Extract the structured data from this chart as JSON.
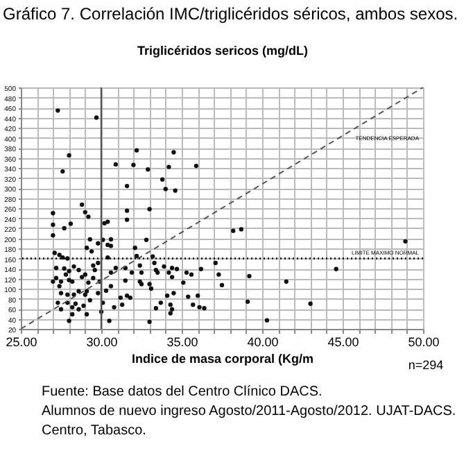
{
  "chart_data": {
    "type": "scatter",
    "title": "Gráfico 7. Correlación IMC/triglicéridos séricos, ambos sexos.",
    "ylabel": "Triglicéridos sericos (mg/dL)",
    "xlabel": "Indice de masa corporal (Kg/m",
    "marker": "circle",
    "grid": true,
    "series": [
      {
        "color": "#111111",
        "x": [
          27.3,
          29.7,
          28.0,
          27.6,
          32.2,
          30.9,
          32.0,
          32.9,
          34.5,
          34.2,
          35.9,
          33.8,
          34.0,
          34.6,
          31.6,
          28.8,
          29.0,
          29.2,
          27.0,
          31.6,
          33.0,
          31.6,
          27.0,
          27.7,
          28.1,
          30.2,
          30.4,
          27.0,
          30.1,
          29.3,
          30.6,
          32.8,
          29.8,
          30.4,
          30.6,
          29.1,
          32.1,
          27.1,
          27.4,
          27.6,
          27.9,
          30.4,
          29.4,
          32.2,
          33.2,
          38.2,
          38.7,
          48.9,
          39.2,
          44.6,
          41.5,
          39.1,
          43.0,
          40.3,
          27.2,
          27.7,
          28.0,
          28.3,
          28.6,
          29.0,
          27.2,
          27.0,
          27.4,
          28.0,
          27.5,
          27.9,
          28.3,
          28.6,
          27.3,
          27.5,
          27.9,
          28.2,
          28.4,
          28.2,
          28.0,
          28.6,
          28.9,
          29.3,
          29.1,
          29.0,
          29.2,
          29.5,
          29.6,
          29.8,
          29.5,
          29.9,
          29.8,
          30.1,
          30.0,
          30.5,
          30.3,
          30.6,
          30.6,
          30.9,
          30.8,
          31.2,
          31.3,
          31.6,
          31.8,
          31.5,
          31.5,
          31.9,
          32.4,
          32.5,
          32.4,
          32.5,
          33.0,
          33.1,
          33.0,
          33.3,
          33.4,
          33.5,
          33.4,
          33.7,
          33.9,
          34.1,
          34.2,
          34.4,
          34.4,
          34.7,
          34.3,
          34.3,
          34.5,
          34.4,
          35.1,
          35.3,
          35.6,
          35.4,
          35.7,
          36.0,
          36.1,
          36.4,
          36.2,
          37.1,
          37.3,
          37.5,
          27.5,
          27.8,
          28.2,
          28.8,
          29.1
        ],
        "values": [
          454,
          440,
          365,
          333,
          375,
          347,
          346,
          337,
          371,
          342,
          344,
          317,
          298,
          295,
          304,
          267,
          252,
          243,
          250,
          255,
          258,
          237,
          227,
          220,
          229,
          230,
          233,
          206,
          197,
          198,
          198,
          197,
          190,
          187,
          185,
          181,
          181,
          171,
          167,
          162,
          160,
          162,
          174,
          165,
          164,
          215,
          218,
          194,
          125,
          139,
          114,
          74,
          70,
          37,
          141,
          140,
          135,
          144,
          137,
          128,
          121,
          114,
          105,
          117,
          91,
          88,
          88,
          95,
          72,
          59,
          72,
          63,
          70,
          49,
          36,
          59,
          66,
          77,
          49,
          88,
          112,
          121,
          137,
          151,
          146,
          114,
          91,
          72,
          54,
          36,
          96,
          105,
          132,
          141,
          63,
          82,
          68,
          86,
          82,
          141,
          116,
          132,
          146,
          132,
          114,
          109,
          109,
          100,
          34,
          151,
          137,
          132,
          61,
          72,
          144,
          86,
          132,
          123,
          141,
          139,
          68,
          51,
          91,
          59,
          112,
          132,
          128,
          84,
          68,
          86,
          63,
          61,
          139,
          151,
          128,
          107,
          114,
          128,
          114,
          123,
          95
        ]
      },
      {
        "color": "#555555",
        "type": "line",
        "marker": "none",
        "line_style": "dashed",
        "x": [
          25,
          50
        ],
        "values": [
          20,
          500
        ]
      }
    ],
    "xlim": [
      25,
      50
    ],
    "xticks": [
      {
        "value": 25,
        "label": "25.00"
      },
      {
        "value": 26,
        "label": null
      },
      {
        "value": 27,
        "label": null
      },
      {
        "value": 28,
        "label": null
      },
      {
        "value": 29,
        "label": null
      },
      {
        "value": 30,
        "label": "30.00"
      },
      {
        "value": 31,
        "label": null
      },
      {
        "value": 32,
        "label": null
      },
      {
        "value": 33,
        "label": null
      },
      {
        "value": 34,
        "label": null
      },
      {
        "value": 35,
        "label": "35.00"
      },
      {
        "value": 36,
        "label": null
      },
      {
        "value": 37,
        "label": null
      },
      {
        "value": 38,
        "label": null
      },
      {
        "value": 39,
        "label": null
      },
      {
        "value": 40,
        "label": "40.00"
      },
      {
        "value": 41,
        "label": null
      },
      {
        "value": 42,
        "label": null
      },
      {
        "value": 43,
        "label": null
      },
      {
        "value": 44,
        "label": null
      },
      {
        "value": 45,
        "label": "45.00"
      },
      {
        "value": 46,
        "label": null
      },
      {
        "value": 47,
        "label": null
      },
      {
        "value": 48,
        "label": null
      },
      {
        "value": 49,
        "label": null
      },
      {
        "value": 50,
        "label": "50.00"
      }
    ],
    "ylim": [
      20,
      500
    ],
    "yticks": [
      20,
      40,
      60,
      80,
      100,
      120,
      140,
      160,
      180,
      200,
      220,
      240,
      260,
      280,
      300,
      320,
      340,
      360,
      380,
      400,
      420,
      440,
      460,
      480,
      500
    ],
    "ref_lines": [
      {
        "axis": "y",
        "value": 160,
        "label": "LIMITE MAXIMO NORMAL",
        "color": "#000000",
        "line_style": "dotted"
      },
      {
        "axis": "x",
        "value": 30,
        "color": "#555555",
        "line_style": "solid"
      }
    ],
    "annotations": [
      "TENDENCIA ESPERADA",
      "n=294",
      "Fuente: Base datos del Centro Clínico DACS.",
      "Alumnos de nuevo ingreso Agosto/2011-Agosto/2012. UJAT-DACS.",
      "Centro, Tabasco."
    ]
  }
}
